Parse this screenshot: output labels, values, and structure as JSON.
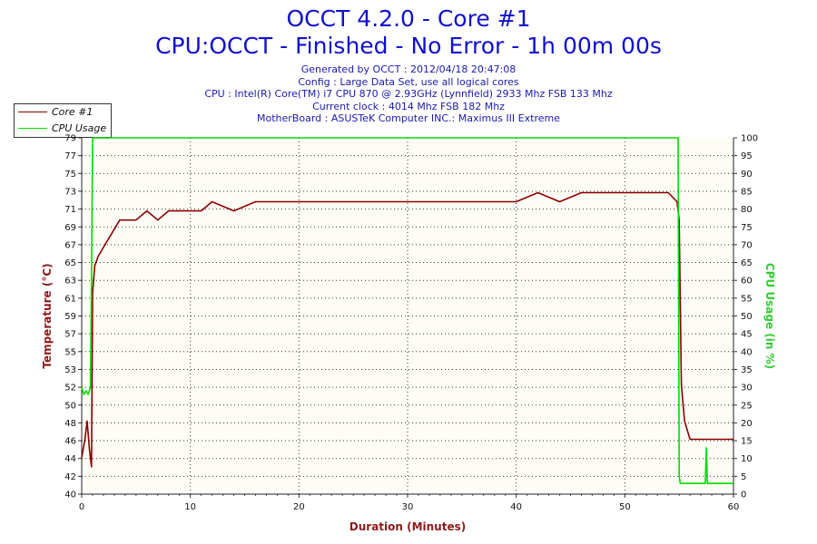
{
  "header": {
    "title": "OCCT 4.2.0 - Core #1",
    "subtitle": "CPU:OCCT - Finished - No Error - 1h 00m 00s",
    "info": [
      "Generated by OCCT : 2012/04/18 20:47:08",
      "Config : Large Data Set, use all logical cores",
      "CPU : Intel(R) Core(TM) i7 CPU 870 @ 2.93GHz (Lynnfield) 2933 Mhz FSB 133 Mhz",
      "Current clock : 4014 Mhz FSB 182 Mhz",
      "MotherBoard : ASUSTeK Computer INC.: Maximus III Extreme"
    ]
  },
  "legend": [
    {
      "label": "Core #1",
      "color": "#8b0000"
    },
    {
      "label": "CPU Usage",
      "color": "#00dd00"
    }
  ],
  "chart_data": {
    "type": "line",
    "title": "OCCT 4.2.0 - Core #1",
    "xlabel": "Duration (Minutes)",
    "ylabel": "Temperature (°C)",
    "y2label": "CPU Usage (in %)",
    "xlim": [
      0,
      60
    ],
    "ylim": [
      40,
      79
    ],
    "y2lim": [
      0,
      100
    ],
    "xticks": [
      "0",
      "10",
      "20",
      "30",
      "40",
      "50",
      "60"
    ],
    "yticks": [
      "40",
      "42",
      "44",
      "46",
      "48",
      "50",
      "52",
      "53",
      "55",
      "57",
      "59",
      "61",
      "63",
      "65",
      "67",
      "69",
      "71",
      "73",
      "75",
      "77",
      "79"
    ],
    "y2ticks": [
      "0",
      "5",
      "10",
      "15",
      "20",
      "25",
      "30",
      "35",
      "40",
      "45",
      "50",
      "55",
      "60",
      "65",
      "70",
      "75",
      "80",
      "85",
      "90",
      "95",
      "100"
    ],
    "grid": true,
    "legend_position": "top-left",
    "series": [
      {
        "name": "Core #1",
        "color": "#8b0000",
        "axis": "left",
        "x": [
          0,
          0.3,
          0.5,
          0.7,
          0.9,
          1.0,
          1.2,
          1.5,
          2.0,
          2.5,
          3.0,
          3.5,
          4.0,
          5.0,
          6.0,
          7.0,
          8.0,
          9.0,
          10.0,
          11.0,
          12.0,
          14.0,
          16.0,
          18.0,
          20.0,
          22.0,
          24.0,
          26.0,
          28.0,
          30.0,
          32.0,
          34.0,
          36.0,
          38.0,
          40.0,
          42.0,
          44.0,
          46.0,
          48.0,
          50.0,
          52.0,
          54.0,
          54.8,
          55.0,
          55.2,
          55.5,
          56.0,
          57.0,
          58.0,
          59.0,
          60.0
        ],
        "y": [
          44,
          46,
          48,
          45,
          43,
          62,
          65,
          66,
          67,
          68,
          69,
          70,
          70,
          70,
          71,
          70,
          71,
          71,
          71,
          71,
          72,
          71,
          72,
          72,
          72,
          72,
          72,
          72,
          72,
          72,
          72,
          72,
          72,
          72,
          72,
          73,
          72,
          73,
          73,
          73,
          73,
          73,
          72,
          70,
          52,
          48,
          46,
          46,
          46,
          46,
          46
        ]
      },
      {
        "name": "CPU Usage",
        "color": "#00dd00",
        "axis": "right",
        "x": [
          0,
          0.2,
          0.4,
          0.6,
          0.8,
          0.9,
          1.0,
          1.1,
          54.9,
          55.0,
          55.1,
          55.3,
          57.0,
          57.4,
          57.5,
          57.6,
          58.0,
          60.0
        ],
        "y": [
          30,
          28,
          29,
          28,
          30,
          60,
          100,
          100,
          100,
          5,
          3,
          3,
          3,
          3,
          13,
          3,
          3,
          3
        ]
      }
    ]
  }
}
